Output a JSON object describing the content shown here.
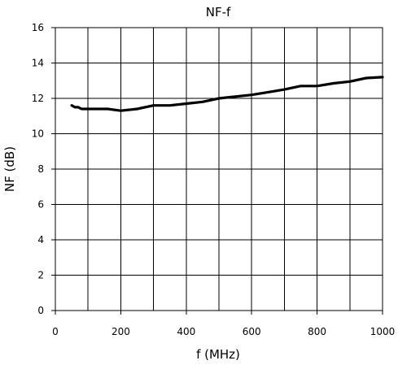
{
  "chart_data": {
    "type": "line",
    "title": "NF-f",
    "xlabel": "f (MHz)",
    "ylabel": "NF (dB)",
    "xlim": [
      0,
      1000
    ],
    "ylim": [
      0,
      16
    ],
    "x_ticks": [
      "0",
      "200",
      "400",
      "600",
      "800",
      "1000"
    ],
    "y_ticks": [
      "0",
      "2",
      "4",
      "6",
      "8",
      "10",
      "12",
      "14",
      "16"
    ],
    "x_tick_values": [
      0,
      200,
      400,
      600,
      800,
      1000
    ],
    "y_tick_values": [
      0,
      2,
      4,
      6,
      8,
      10,
      12,
      14,
      16
    ],
    "grid_x": [
      0,
      100,
      200,
      300,
      400,
      500,
      600,
      700,
      800,
      900,
      1000
    ],
    "grid_y": [
      0,
      2,
      4,
      6,
      8,
      10,
      12,
      14,
      16
    ],
    "grid": true,
    "legend": false,
    "colors": {
      "line": "#000000",
      "grid": "#000000",
      "background": "#ffffff"
    },
    "series": [
      {
        "x": [
          50,
          60,
          70,
          80,
          100,
          150,
          160,
          200,
          250,
          300,
          350,
          400,
          450,
          500,
          550,
          600,
          650,
          700,
          750,
          800,
          850,
          900,
          950,
          1000
        ],
        "y": [
          11.6,
          11.5,
          11.5,
          11.4,
          11.4,
          11.4,
          11.4,
          11.3,
          11.4,
          11.6,
          11.6,
          11.7,
          11.8,
          12.0,
          12.1,
          12.2,
          12.35,
          12.5,
          12.7,
          12.7,
          12.85,
          12.95,
          13.15,
          13.2
        ]
      }
    ]
  }
}
